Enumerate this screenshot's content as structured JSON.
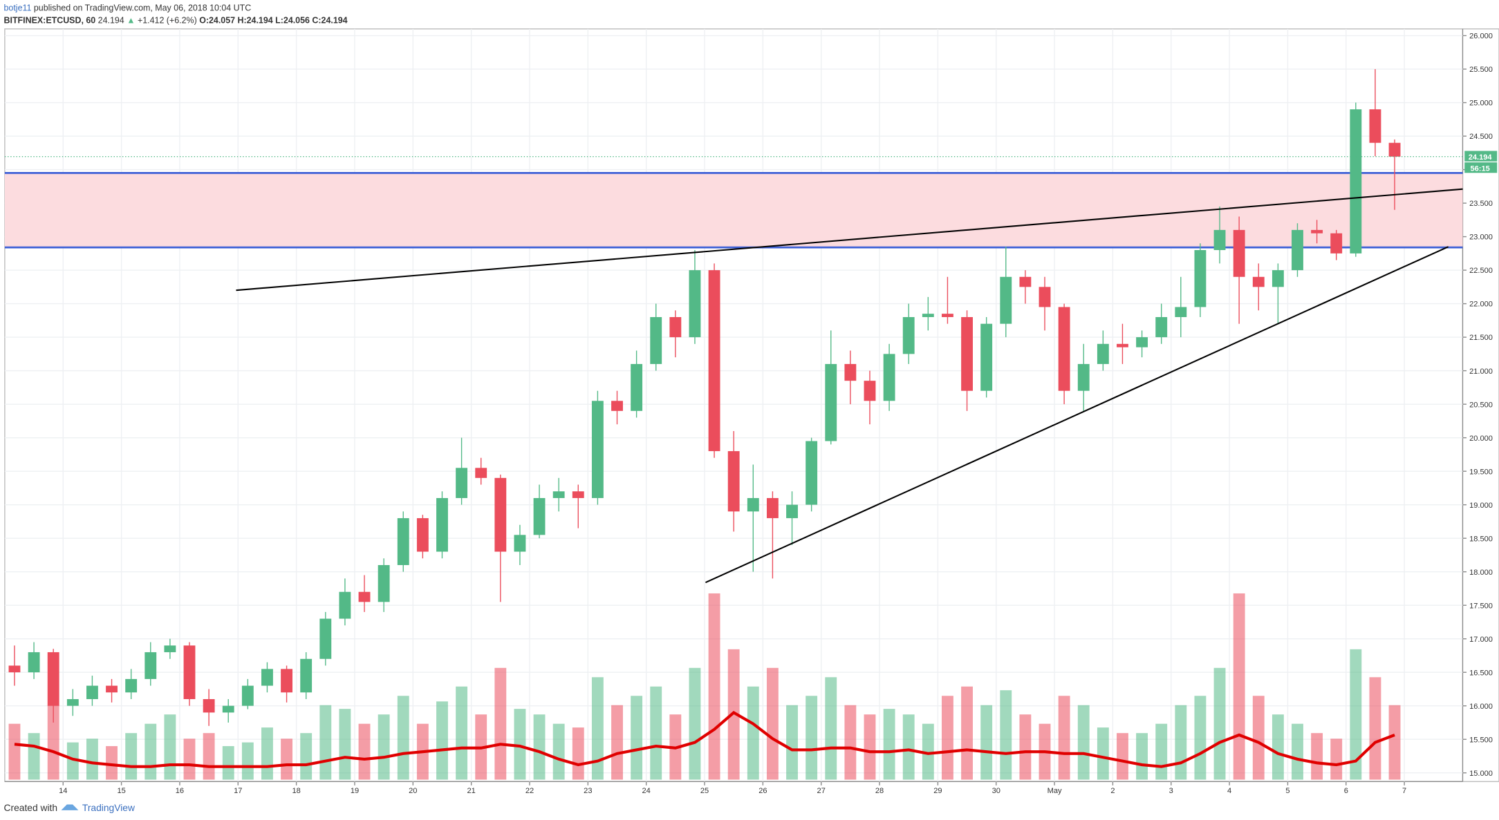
{
  "header": {
    "publisher": "botje11",
    "published": "published on TradingView.com, May 06, 2018 10:04 UTC",
    "symbol": "BITFINEX:ETCUSD, 60",
    "last": "24.194",
    "arrow": "▲",
    "change": "+1.412 (+6.2%)",
    "open": "O:24.057",
    "high": "H:24.194",
    "low": "L:24.056",
    "close": "C:24.194"
  },
  "footer": {
    "created": "Created with",
    "brand": "TradingView"
  },
  "chart_data": {
    "type": "candlestick",
    "price_label": "24.194",
    "countdown": "56:15",
    "last_price": 24.194,
    "up_color": "#53b987",
    "down_color": "#eb4d5c",
    "ma_color": "#e00000",
    "zone_color": "#fcdcdf",
    "hline_color": "#3c5fd6",
    "xlim": [
      0,
      75
    ],
    "ylim": [
      14.87,
      26.1
    ],
    "grid": true,
    "xticks": [
      {
        "value": 3,
        "label": "14"
      },
      {
        "value": 6,
        "label": "15"
      },
      {
        "value": 9,
        "label": "16"
      },
      {
        "value": 12,
        "label": "17"
      },
      {
        "value": 15,
        "label": "18"
      },
      {
        "value": 18,
        "label": "19"
      },
      {
        "value": 21,
        "label": "20"
      },
      {
        "value": 24,
        "label": "21"
      },
      {
        "value": 27,
        "label": "22"
      },
      {
        "value": 30,
        "label": "23"
      },
      {
        "value": 33,
        "label": "24"
      },
      {
        "value": 36,
        "label": "25"
      },
      {
        "value": 39,
        "label": "26"
      },
      {
        "value": 42,
        "label": "27"
      },
      {
        "value": 45,
        "label": "28"
      },
      {
        "value": 48,
        "label": "29"
      },
      {
        "value": 51,
        "label": "30"
      },
      {
        "value": 54,
        "label": "May"
      },
      {
        "value": 57,
        "label": "2"
      },
      {
        "value": 60,
        "label": "3"
      },
      {
        "value": 63,
        "label": "4"
      },
      {
        "value": 66,
        "label": "5"
      },
      {
        "value": 69,
        "label": "6"
      },
      {
        "value": 72,
        "label": "7"
      }
    ],
    "yticks": [
      {
        "value": 15,
        "label": "15.000"
      },
      {
        "value": 15.5,
        "label": "15.500"
      },
      {
        "value": 16,
        "label": "16.000"
      },
      {
        "value": 16.5,
        "label": "16.500"
      },
      {
        "value": 17,
        "label": "17.000"
      },
      {
        "value": 17.5,
        "label": "17.500"
      },
      {
        "value": 18,
        "label": "18.000"
      },
      {
        "value": 18.5,
        "label": "18.500"
      },
      {
        "value": 19,
        "label": "19.000"
      },
      {
        "value": 19.5,
        "label": "19.500"
      },
      {
        "value": 20,
        "label": "20.000"
      },
      {
        "value": 20.5,
        "label": "20.500"
      },
      {
        "value": 21,
        "label": "21.000"
      },
      {
        "value": 21.5,
        "label": "21.500"
      },
      {
        "value": 22,
        "label": "22.000"
      },
      {
        "value": 22.5,
        "label": "22.500"
      },
      {
        "value": 23,
        "label": "23.000"
      },
      {
        "value": 23.5,
        "label": "23.500"
      },
      {
        "value": 24,
        "label": "24.000"
      },
      {
        "value": 24.5,
        "label": "24.500"
      },
      {
        "value": 25,
        "label": "25.000"
      },
      {
        "value": 25.5,
        "label": "25.500"
      },
      {
        "value": 26,
        "label": "26.000"
      }
    ],
    "hlines": [
      23.95,
      22.84
    ],
    "trendlines": [
      {
        "x": [
          11.9,
          75
        ],
        "y": [
          22.2,
          23.71
        ]
      },
      {
        "x": [
          36.05,
          74.26
        ],
        "y": [
          17.84,
          22.85
        ]
      }
    ],
    "candles": [
      [
        16.6,
        16.9,
        16.3,
        16.5
      ],
      [
        16.5,
        16.95,
        16.4,
        16.8
      ],
      [
        16.8,
        16.85,
        15.75,
        16.0
      ],
      [
        16.0,
        16.25,
        15.85,
        16.1
      ],
      [
        16.1,
        16.45,
        16.0,
        16.3
      ],
      [
        16.3,
        16.4,
        16.05,
        16.2
      ],
      [
        16.2,
        16.55,
        16.1,
        16.4
      ],
      [
        16.4,
        16.95,
        16.3,
        16.8
      ],
      [
        16.8,
        17.0,
        16.7,
        16.9
      ],
      [
        16.9,
        16.95,
        16.0,
        16.1
      ],
      [
        16.1,
        16.25,
        15.7,
        15.9
      ],
      [
        15.9,
        16.1,
        15.75,
        16.0
      ],
      [
        16.0,
        16.4,
        15.95,
        16.3
      ],
      [
        16.3,
        16.65,
        16.2,
        16.55
      ],
      [
        16.55,
        16.6,
        16.05,
        16.2
      ],
      [
        16.2,
        16.8,
        16.1,
        16.7
      ],
      [
        16.7,
        17.4,
        16.6,
        17.3
      ],
      [
        17.3,
        17.9,
        17.2,
        17.7
      ],
      [
        17.7,
        17.95,
        17.4,
        17.55
      ],
      [
        17.55,
        18.2,
        17.4,
        18.1
      ],
      [
        18.1,
        18.9,
        18.0,
        18.8
      ],
      [
        18.8,
        18.85,
        18.2,
        18.3
      ],
      [
        18.3,
        19.2,
        18.2,
        19.1
      ],
      [
        19.1,
        20.0,
        19.0,
        19.55
      ],
      [
        19.55,
        19.7,
        19.3,
        19.4
      ],
      [
        19.4,
        19.45,
        17.55,
        18.3
      ],
      [
        18.3,
        18.7,
        18.1,
        18.55
      ],
      [
        18.55,
        19.3,
        18.5,
        19.1
      ],
      [
        19.1,
        19.4,
        18.9,
        19.2
      ],
      [
        19.2,
        19.3,
        18.65,
        19.1
      ],
      [
        19.1,
        20.7,
        19.0,
        20.55
      ],
      [
        20.55,
        20.7,
        20.2,
        20.4
      ],
      [
        20.4,
        21.3,
        20.3,
        21.1
      ],
      [
        21.1,
        22.0,
        21.0,
        21.8
      ],
      [
        21.8,
        21.9,
        21.2,
        21.5
      ],
      [
        21.5,
        22.8,
        21.4,
        22.5
      ],
      [
        22.5,
        22.6,
        19.7,
        19.8
      ],
      [
        19.8,
        20.1,
        18.6,
        18.9
      ],
      [
        18.9,
        19.6,
        18.0,
        19.1
      ],
      [
        19.1,
        19.2,
        17.9,
        18.8
      ],
      [
        18.8,
        19.2,
        18.4,
        19.0
      ],
      [
        19.0,
        20.0,
        18.9,
        19.95
      ],
      [
        19.95,
        21.6,
        19.9,
        21.1
      ],
      [
        21.1,
        21.3,
        20.5,
        20.85
      ],
      [
        20.85,
        21.0,
        20.2,
        20.55
      ],
      [
        20.55,
        21.4,
        20.4,
        21.25
      ],
      [
        21.25,
        22.0,
        21.1,
        21.8
      ],
      [
        21.8,
        22.1,
        21.6,
        21.85
      ],
      [
        21.85,
        22.4,
        21.7,
        21.8
      ],
      [
        21.8,
        21.9,
        20.4,
        20.7
      ],
      [
        20.7,
        21.8,
        20.6,
        21.7
      ],
      [
        21.7,
        22.85,
        21.5,
        22.4
      ],
      [
        22.4,
        22.5,
        22.0,
        22.25
      ],
      [
        22.25,
        22.4,
        21.6,
        21.95
      ],
      [
        21.95,
        22.0,
        20.5,
        20.7
      ],
      [
        20.7,
        21.4,
        20.4,
        21.1
      ],
      [
        21.1,
        21.6,
        21.0,
        21.4
      ],
      [
        21.4,
        21.7,
        21.1,
        21.35
      ],
      [
        21.35,
        21.6,
        21.2,
        21.5
      ],
      [
        21.5,
        22.0,
        21.4,
        21.8
      ],
      [
        21.8,
        22.4,
        21.5,
        21.95
      ],
      [
        21.95,
        22.9,
        21.8,
        22.8
      ],
      [
        22.8,
        23.45,
        22.6,
        23.1
      ],
      [
        23.1,
        23.3,
        21.7,
        22.4
      ],
      [
        22.4,
        22.6,
        21.9,
        22.25
      ],
      [
        22.25,
        22.6,
        21.7,
        22.5
      ],
      [
        22.5,
        23.2,
        22.4,
        23.1
      ],
      [
        23.1,
        23.25,
        22.9,
        23.05
      ],
      [
        23.05,
        23.1,
        22.65,
        22.75
      ],
      [
        22.75,
        25.0,
        22.7,
        24.9
      ],
      [
        24.9,
        25.5,
        24.2,
        24.4
      ],
      [
        24.4,
        24.45,
        23.4,
        24.194
      ]
    ],
    "volume": [
      30,
      25,
      40,
      20,
      22,
      18,
      25,
      30,
      35,
      22,
      25,
      18,
      20,
      28,
      22,
      25,
      40,
      38,
      30,
      35,
      45,
      30,
      42,
      50,
      35,
      60,
      38,
      35,
      30,
      28,
      55,
      40,
      45,
      50,
      35,
      60,
      100,
      70,
      50,
      60,
      40,
      45,
      55,
      40,
      35,
      38,
      35,
      30,
      45,
      50,
      40,
      48,
      35,
      30,
      45,
      40,
      28,
      25,
      25,
      30,
      40,
      45,
      60,
      100,
      45,
      35,
      30,
      25,
      22,
      70,
      55,
      40
    ],
    "volume_ma": [
      19,
      18,
      15,
      11,
      9,
      8,
      7,
      7,
      8,
      8,
      7,
      7,
      7,
      7,
      8,
      8,
      10,
      12,
      11,
      12,
      14,
      15,
      16,
      17,
      17,
      19,
      18,
      15,
      11,
      8,
      10,
      14,
      16,
      18,
      17,
      20,
      27,
      36,
      30,
      22,
      16,
      16,
      17,
      17,
      15,
      15,
      16,
      14,
      15,
      16,
      15,
      14,
      15,
      15,
      14,
      14,
      12,
      10,
      8,
      7,
      9,
      14,
      20,
      24,
      20,
      14,
      11,
      9,
      8,
      10,
      20,
      24
    ]
  }
}
